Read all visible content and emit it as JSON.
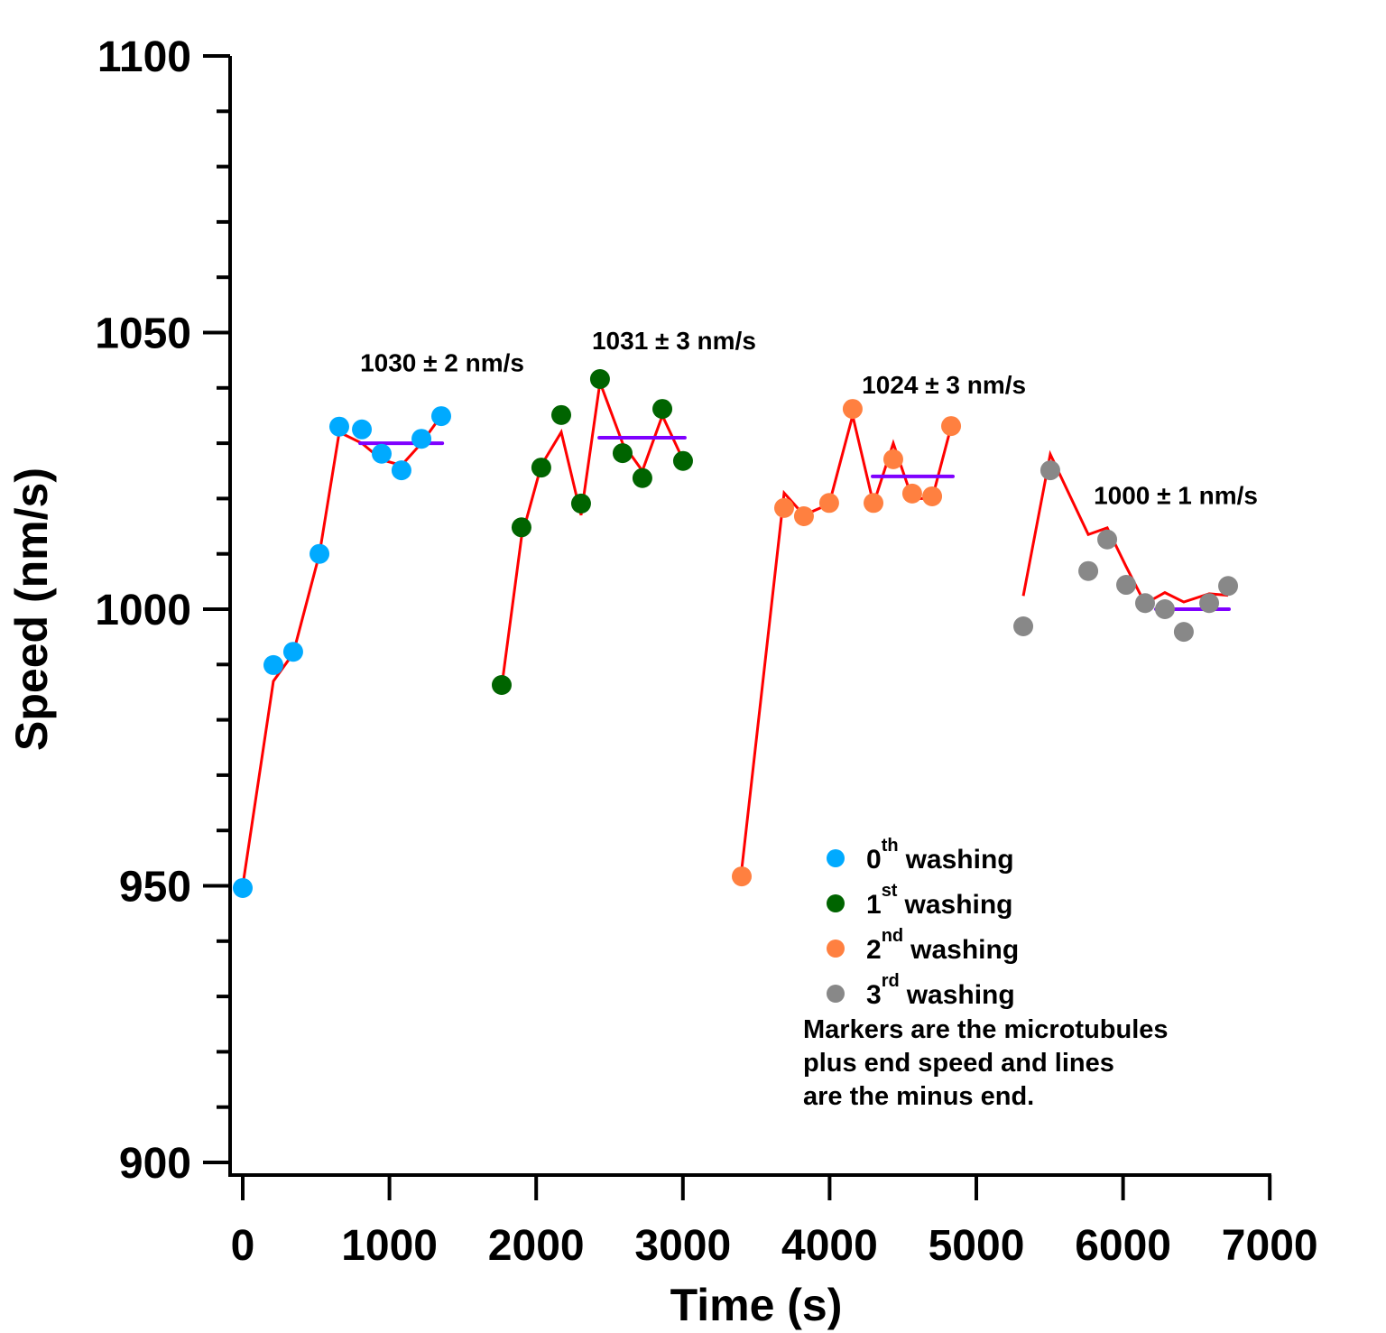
{
  "chart_data": {
    "type": "scatter",
    "title": "",
    "xlabel": "Time (s)",
    "ylabel": "Speed (nm/s)",
    "xlim": [
      -86,
      7000
    ],
    "ylim": [
      898,
      1100
    ],
    "xticks": [
      "0",
      "1000",
      "2000",
      "3000",
      "4000",
      "5000",
      "6000",
      "7000"
    ],
    "xtick_values": [
      0,
      1000,
      2000,
      3000,
      4000,
      5000,
      6000,
      7000
    ],
    "yticks": [
      "900",
      "950",
      "1000",
      "1050",
      "1100"
    ],
    "ytick_values": [
      900,
      950,
      1000,
      1050,
      1100
    ],
    "y_minor_step": 10,
    "grid": false,
    "legend_placement": "bottom-right",
    "series": [
      {
        "name": "washing",
        "ordinal": "0",
        "suffix": "th",
        "color": "#00aaff",
        "x": [
          0,
          209,
          344,
          523,
          658,
          812,
          947,
          1082,
          1218,
          1353
        ],
        "plus_end": [
          949.6,
          989.9,
          992.3,
          1010.0,
          1033.0,
          1032.5,
          1028.1,
          1025.1,
          1030.8,
          1034.9
        ],
        "minus_end": [
          950,
          987,
          992,
          1010,
          1032,
          1030,
          1027,
          1026,
          1030,
          1035
        ],
        "mean": {
          "value": 1030,
          "x_range": [
            800,
            1360
          ],
          "label": "1030 ± 2 nm/s",
          "label_at": [
            800,
            1043
          ]
        }
      },
      {
        "name": "washing",
        "ordinal": "1",
        "suffix": "st",
        "color": "#006400",
        "x": [
          1765,
          1900,
          2035,
          2171,
          2306,
          2435,
          2589,
          2724,
          2860,
          3001
        ],
        "plus_end": [
          986.3,
          1014.8,
          1025.6,
          1035.1,
          1019.1,
          1041.6,
          1028.2,
          1023.7,
          1036.2,
          1026.8
        ],
        "minus_end": [
          986,
          1013,
          1026,
          1032,
          1017,
          1041,
          1030,
          1025,
          1035,
          1027
        ],
        "mean": {
          "value": 1031,
          "x_range": [
            2430,
            3013
          ],
          "label": "1031 ± 3 nm/s",
          "label_at": [
            2380,
            1047
          ]
        }
      },
      {
        "name": "washing",
        "ordinal": "2",
        "suffix": "nd",
        "color": "#ff8040",
        "x": [
          3401,
          3690,
          3825,
          3997,
          4157,
          4299,
          4434,
          4563,
          4699,
          4828
        ],
        "plus_end": [
          951.7,
          1018.3,
          1016.8,
          1019.2,
          1036.2,
          1019.2,
          1027.1,
          1020.9,
          1020.4,
          1033.1
        ],
        "minus_end": [
          953,
          1021,
          1017,
          1019,
          1035,
          1019,
          1030,
          1020,
          1020,
          1033
        ],
        "mean": {
          "value": 1024,
          "x_range": [
            4293,
            4840
          ],
          "label": "1024 ± 3 nm/s",
          "label_at": [
            4220,
            1039
          ]
        }
      },
      {
        "name": "washing",
        "ordinal": "3",
        "suffix": "rd",
        "color": "#888888",
        "x": [
          5320,
          5504,
          5763,
          5892,
          6021,
          6150,
          6285,
          6414,
          6587,
          6716
        ],
        "plus_end": [
          996.9,
          1025.1,
          1006.9,
          1012.6,
          1004.4,
          1001.1,
          1000.0,
          995.9,
          1001.1,
          1004.2
        ],
        "minus_end": [
          1002.4,
          1028,
          1013.5,
          1014.7,
          1007.7,
          1001,
          1003,
          1001.3,
          1002.8,
          1002.5
        ],
        "mean": {
          "value": 1000,
          "x_range": [
            6224,
            6722
          ],
          "label": "1000 ± 1 nm/s",
          "label_at": [
            5800,
            1019
          ]
        }
      }
    ],
    "line_color": "#ff0000",
    "mean_color": "#7f00ff",
    "note": [
      "Markers are the microtubules",
      "plus end speed and lines",
      "are the minus end."
    ]
  }
}
